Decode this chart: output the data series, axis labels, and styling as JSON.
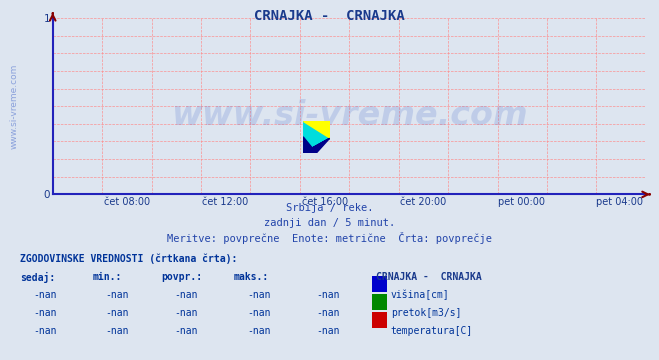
{
  "title": "CRNAJKA -  CRNAJKA",
  "title_color": "#1a3a8c",
  "title_fontsize": 10,
  "bg_color": "#dde5f0",
  "plot_bg_color": "#dde5f0",
  "grid_color": "#ff8888",
  "axis_color": "#2222bb",
  "ylim": [
    0,
    1
  ],
  "yticks": [
    0,
    1
  ],
  "xtick_labels": [
    "čet 08:00",
    "čet 12:00",
    "čet 16:00",
    "čet 20:00",
    "pet 00:00",
    "pet 04:00"
  ],
  "xtick_positions": [
    0.125,
    0.29,
    0.46,
    0.625,
    0.79,
    0.955
  ],
  "xtick_color": "#1a3a8c",
  "xtick_fontsize": 7,
  "ytick_fontsize": 7.5,
  "ytick_color": "#1a3a8c",
  "watermark_text": "www.si-vreme.com",
  "watermark_color": "#3a5fc8",
  "watermark_alpha": 0.18,
  "watermark_fontsize": 24,
  "sidewatermark_text": "www.si-vreme.com",
  "sidewatermark_color": "#3a5fc8",
  "sidewatermark_alpha": 0.5,
  "sidewatermark_fontsize": 6.5,
  "subtitle1": "Srbija / reke.",
  "subtitle2": "zadnji dan / 5 minut.",
  "subtitle3": "Meritve: povprečne  Enote: metrične  Črta: povprečje",
  "subtitle_color": "#2244aa",
  "subtitle_fontsize": 7.5,
  "table_header": "ZGODOVINSKE VREDNOSTI (črtkana črta):",
  "table_header_color": "#003399",
  "table_header_fontsize": 7,
  "table_cols": [
    "sedaj:",
    "min.:",
    "povpr.:",
    "maks.:"
  ],
  "table_col_color": "#003399",
  "table_col_fontsize": 7,
  "table_values": [
    "-nan",
    "-nan",
    "-nan",
    "-nan"
  ],
  "table_value_color": "#003399",
  "table_value_fontsize": 7,
  "legend_title": "CRNAJKA -  CRNAJKA",
  "legend_title_color": "#1a3a8c",
  "legend_title_fontsize": 7,
  "legend_items": [
    {
      "label": "višina[cm]",
      "color": "#0000cc"
    },
    {
      "label": "pretok[m3/s]",
      "color": "#008800"
    },
    {
      "label": "temperatura[C]",
      "color": "#cc0000"
    }
  ],
  "legend_fontsize": 7,
  "arrow_color": "#880000",
  "logo_yellow": "#ffff00",
  "logo_cyan": "#00dddd",
  "logo_blue": "#000088",
  "num_vgrid": 12,
  "num_hgrid": 10
}
